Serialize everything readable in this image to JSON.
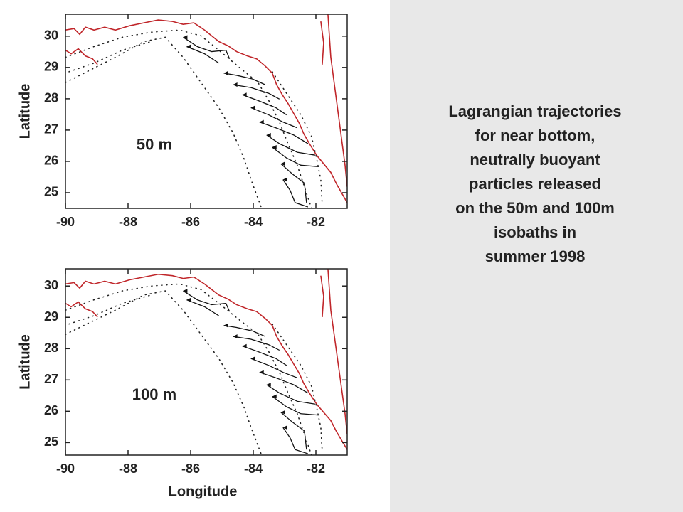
{
  "chart_data": [
    {
      "type": "map",
      "label": "50 m",
      "ylabel": "Latitude",
      "xlim": [
        -90,
        -81
      ],
      "ylim": [
        24.5,
        30.7
      ],
      "xticks": [
        -90,
        -88,
        -86,
        -84,
        -82
      ],
      "yticks": [
        25,
        26,
        27,
        28,
        29,
        30
      ]
    },
    {
      "type": "map",
      "label": "100 m",
      "ylabel": "Latitude",
      "xlabel": "Longitude",
      "xlim": [
        -90,
        -81
      ],
      "ylim": [
        24.6,
        30.55
      ],
      "xticks": [
        -90,
        -88,
        -86,
        -84,
        -82
      ],
      "yticks": [
        25,
        26,
        27,
        28,
        29,
        30
      ]
    }
  ],
  "caption": {
    "lines": [
      "Lagrangian trajectories",
      "for near bottom,",
      "neutrally buoyant",
      "particles released",
      "on the 50m and 100m",
      "isobaths in",
      "summer 1998"
    ]
  }
}
